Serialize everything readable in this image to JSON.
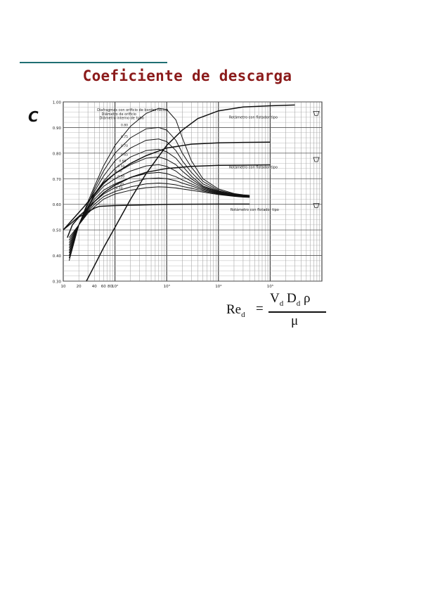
{
  "page": {
    "title": "Coeficiente de descarga",
    "y_symbol": "C",
    "formula": {
      "lhs": "Re",
      "lhs_sub": "d",
      "equals": "=",
      "numerator": "V",
      "numerator_sub1": "d",
      "numerator_mid": " D",
      "numerator_sub2": "d",
      "numerator_end": " ρ",
      "denominator": "μ"
    }
  },
  "colors": {
    "title": "#8b1a1a",
    "rule": "#1f6f73",
    "curve": "#111111",
    "grid": "#888888"
  },
  "chart_data": {
    "type": "line",
    "x_scale": "log",
    "xlim": [
      10,
      1000000
    ],
    "ylim": [
      0.3,
      1.0
    ],
    "grid": true,
    "x_tick_labels": [
      {
        "value": 10,
        "label": "10"
      },
      {
        "value": 20,
        "label": "20"
      },
      {
        "value": 40,
        "label": "40"
      },
      {
        "value": 60,
        "label": "60"
      },
      {
        "value": 80,
        "label": "80"
      },
      {
        "value": 100,
        "label": "10²"
      },
      {
        "value": 1000,
        "label": "10³"
      },
      {
        "value": 10000,
        "label": "10⁴"
      },
      {
        "value": 100000,
        "label": "10⁵"
      }
    ],
    "y_tick_labels": [
      {
        "value": 1.0,
        "label": "1.00"
      },
      {
        "value": 0.9,
        "label": "0.90"
      },
      {
        "value": 0.8,
        "label": "0.80"
      },
      {
        "value": 0.7,
        "label": "0.70"
      },
      {
        "value": 0.6,
        "label": "0.60"
      },
      {
        "value": 0.5,
        "label": "0.50"
      },
      {
        "value": 0.4,
        "label": "0.40"
      },
      {
        "value": 0.3,
        "label": "0.30"
      }
    ],
    "annotations": [
      {
        "text": "Diafragmas con orificio de bordes rectos",
        "x": 45,
        "y": 0.965
      },
      {
        "text": "Diámetro de orificio",
        "x": 55,
        "y": 0.948
      },
      {
        "text": "Diámetro interno de tubo",
        "x": 50,
        "y": 0.933
      },
      {
        "text": "Rotámetro con flotador tipo",
        "x": 16000,
        "y": 0.935
      },
      {
        "text": "Rotámetro con flotador tipo",
        "x": 16000,
        "y": 0.74
      },
      {
        "text": "Rotámetro con flotador tipo",
        "x": 17000,
        "y": 0.575
      }
    ],
    "ratio_labels": [
      {
        "text": "0.80",
        "x": 130,
        "y": 0.905
      },
      {
        "text": "0.75",
        "x": 130,
        "y": 0.86
      },
      {
        "text": "0.70",
        "x": 130,
        "y": 0.825
      },
      {
        "text": "0.65",
        "x": 130,
        "y": 0.79
      },
      {
        "text": "0.60",
        "x": 120,
        "y": 0.765
      },
      {
        "text": "0.50",
        "x": 112,
        "y": 0.745
      },
      {
        "text": "0.40",
        "x": 100,
        "y": 0.725
      },
      {
        "text": "0.30",
        "x": 112,
        "y": 0.705
      },
      {
        "text": "0.20",
        "x": 108,
        "y": 0.675
      },
      {
        "text": "0.10",
        "x": 103,
        "y": 0.66
      }
    ],
    "series": [
      {
        "x": [
          13,
          20,
          30,
          40,
          60,
          100,
          200,
          400,
          700,
          1000,
          1500,
          2000,
          3000,
          5000,
          10000,
          20000,
          30000,
          40000
        ],
        "y": [
          0.38,
          0.52,
          0.61,
          0.67,
          0.75,
          0.83,
          0.905,
          0.955,
          0.975,
          0.97,
          0.93,
          0.86,
          0.77,
          0.7,
          0.66,
          0.642,
          0.637,
          0.635
        ]
      },
      {
        "x": [
          13,
          20,
          30,
          40,
          60,
          100,
          200,
          400,
          700,
          1000,
          1500,
          2000,
          3000,
          5000,
          10000,
          20000,
          30000,
          40000
        ],
        "y": [
          0.39,
          0.52,
          0.6,
          0.66,
          0.73,
          0.8,
          0.86,
          0.895,
          0.9,
          0.89,
          0.85,
          0.8,
          0.745,
          0.69,
          0.655,
          0.64,
          0.636,
          0.635
        ]
      },
      {
        "x": [
          13,
          20,
          30,
          40,
          60,
          100,
          200,
          400,
          700,
          1000,
          1500,
          2000,
          3000,
          5000,
          10000,
          20000,
          30000,
          40000
        ],
        "y": [
          0.4,
          0.52,
          0.6,
          0.65,
          0.71,
          0.77,
          0.82,
          0.85,
          0.855,
          0.845,
          0.81,
          0.77,
          0.725,
          0.68,
          0.652,
          0.638,
          0.635,
          0.634
        ]
      },
      {
        "x": [
          13,
          20,
          30,
          40,
          60,
          100,
          200,
          400,
          700,
          1000,
          1500,
          2000,
          3000,
          5000,
          10000,
          20000,
          30000,
          40000
        ],
        "y": [
          0.41,
          0.52,
          0.59,
          0.64,
          0.69,
          0.74,
          0.785,
          0.81,
          0.815,
          0.805,
          0.78,
          0.75,
          0.71,
          0.672,
          0.65,
          0.637,
          0.634,
          0.633
        ]
      },
      {
        "x": [
          13,
          20,
          30,
          40,
          60,
          100,
          200,
          400,
          700,
          1000,
          1500,
          2000,
          3000,
          5000,
          10000,
          20000,
          30000,
          40000
        ],
        "y": [
          0.42,
          0.52,
          0.59,
          0.635,
          0.68,
          0.72,
          0.755,
          0.78,
          0.785,
          0.775,
          0.755,
          0.73,
          0.7,
          0.668,
          0.648,
          0.636,
          0.633,
          0.632
        ]
      },
      {
        "x": [
          13,
          20,
          30,
          40,
          60,
          100,
          200,
          400,
          700,
          1000,
          1500,
          2000,
          3000,
          5000,
          10000,
          20000,
          30000,
          40000
        ],
        "y": [
          0.43,
          0.52,
          0.585,
          0.63,
          0.67,
          0.7,
          0.73,
          0.75,
          0.755,
          0.748,
          0.73,
          0.71,
          0.69,
          0.664,
          0.646,
          0.635,
          0.632,
          0.631
        ]
      },
      {
        "x": [
          13,
          20,
          30,
          40,
          60,
          100,
          200,
          400,
          700,
          1000,
          1500,
          2000,
          3000,
          5000,
          10000,
          20000,
          30000,
          40000
        ],
        "y": [
          0.44,
          0.52,
          0.58,
          0.62,
          0.655,
          0.68,
          0.705,
          0.72,
          0.725,
          0.72,
          0.708,
          0.695,
          0.68,
          0.66,
          0.644,
          0.634,
          0.631,
          0.63
        ]
      },
      {
        "x": [
          13,
          20,
          30,
          40,
          60,
          100,
          200,
          400,
          700,
          1000,
          1500,
          2000,
          3000,
          5000,
          10000,
          20000,
          30000,
          40000
        ],
        "y": [
          0.45,
          0.52,
          0.575,
          0.61,
          0.64,
          0.665,
          0.685,
          0.7,
          0.703,
          0.7,
          0.692,
          0.683,
          0.672,
          0.656,
          0.642,
          0.633,
          0.63,
          0.629
        ]
      },
      {
        "x": [
          13,
          20,
          30,
          40,
          60,
          100,
          200,
          400,
          700,
          1000,
          1500,
          2000,
          3000,
          5000,
          10000,
          20000,
          30000,
          40000
        ],
        "y": [
          0.46,
          0.52,
          0.57,
          0.6,
          0.63,
          0.65,
          0.668,
          0.68,
          0.683,
          0.681,
          0.676,
          0.67,
          0.663,
          0.652,
          0.64,
          0.632,
          0.629,
          0.628
        ]
      },
      {
        "x": [
          13,
          20,
          30,
          40,
          60,
          100,
          200,
          400,
          700,
          1000,
          1500,
          2000,
          3000,
          5000,
          10000,
          20000,
          30000,
          40000
        ],
        "y": [
          0.47,
          0.52,
          0.565,
          0.59,
          0.62,
          0.64,
          0.655,
          0.665,
          0.668,
          0.667,
          0.664,
          0.66,
          0.655,
          0.648,
          0.638,
          0.631,
          0.628,
          0.627
        ]
      },
      {
        "x": [
          10,
          15,
          25,
          40,
          60,
          100,
          200,
          400,
          1000,
          3000,
          10000,
          30000,
          100000
        ],
        "y": [
          0.5,
          0.54,
          0.59,
          0.64,
          0.685,
          0.72,
          0.76,
          0.79,
          0.82,
          0.835,
          0.84,
          0.842,
          0.843
        ]
      },
      {
        "x": [
          10,
          15,
          25,
          40,
          60,
          100,
          200,
          400,
          1000,
          3000,
          10000,
          30000,
          100000
        ],
        "y": [
          0.5,
          0.53,
          0.57,
          0.61,
          0.645,
          0.675,
          0.705,
          0.725,
          0.74,
          0.748,
          0.752,
          0.753,
          0.754
        ]
      },
      {
        "x": [
          12,
          15,
          20,
          30,
          40,
          50,
          100,
          300,
          1000,
          10000,
          40000
        ],
        "y": [
          0.47,
          0.52,
          0.55,
          0.57,
          0.585,
          0.592,
          0.595,
          0.597,
          0.6,
          0.601,
          0.601
        ]
      },
      {
        "x": [
          28,
          40,
          60,
          100,
          200,
          400,
          1000,
          2000,
          4000,
          10000,
          30000,
          100000,
          300000
        ],
        "y": [
          0.3,
          0.36,
          0.43,
          0.51,
          0.62,
          0.72,
          0.83,
          0.89,
          0.935,
          0.965,
          0.98,
          0.985,
          0.988
        ]
      }
    ]
  }
}
